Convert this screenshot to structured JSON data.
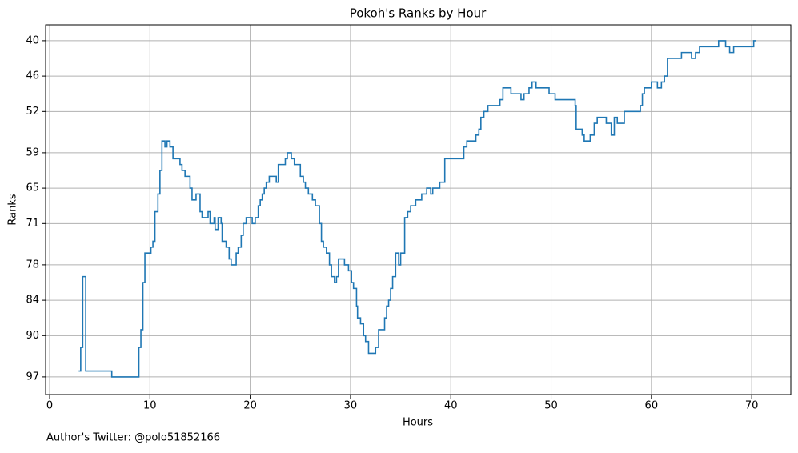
{
  "chart_data": {
    "type": "line",
    "drawstyle": "steps-post",
    "title": "Pokoh's Ranks by Hour",
    "x_label": "Hours",
    "y_label": "Ranks",
    "annotation": "Author's Twitter: @polo51852166",
    "x": [
      2.9,
      3.1,
      3.3,
      3.6,
      6.2,
      8.9,
      9.1,
      9.3,
      9.5,
      10.1,
      10.3,
      10.5,
      10.8,
      11.0,
      11.2,
      11.5,
      11.7,
      12.0,
      12.3,
      13.0,
      13.2,
      13.5,
      14.0,
      14.2,
      14.6,
      15.0,
      15.2,
      15.8,
      16.0,
      16.4,
      16.5,
      16.8,
      17.1,
      17.2,
      17.6,
      17.9,
      18.1,
      18.6,
      18.8,
      19.1,
      19.3,
      19.6,
      20.2,
      20.5,
      20.8,
      21.0,
      21.2,
      21.4,
      21.6,
      21.9,
      22.6,
      22.8,
      23.5,
      23.7,
      24.1,
      24.4,
      25.0,
      25.3,
      25.5,
      25.8,
      26.2,
      26.5,
      26.9,
      27.1,
      27.3,
      27.6,
      27.9,
      28.1,
      28.4,
      28.6,
      28.8,
      29.4,
      29.8,
      30.1,
      30.3,
      30.6,
      30.7,
      31.0,
      31.3,
      31.5,
      31.8,
      32.5,
      32.8,
      33.4,
      33.6,
      33.8,
      34.0,
      34.2,
      34.5,
      34.8,
      35.0,
      35.4,
      35.7,
      36.0,
      36.5,
      37.1,
      37.6,
      38.0,
      38.2,
      38.9,
      39.4,
      41.3,
      41.6,
      42.5,
      42.8,
      43.0,
      43.3,
      43.7,
      44.9,
      45.2,
      46.0,
      47.0,
      47.3,
      47.8,
      48.1,
      48.5,
      49.8,
      50.4,
      52.4,
      52.5,
      53.1,
      53.3,
      53.9,
      54.3,
      54.6,
      55.5,
      56.0,
      56.3,
      56.6,
      57.3,
      58.9,
      59.1,
      59.3,
      60.0,
      60.6,
      61.0,
      61.3,
      61.6,
      63.0,
      64.0,
      64.4,
      64.8,
      66.7,
      67.4,
      67.8,
      68.2,
      70.2,
      70.4
    ],
    "series": [
      {
        "name": "Ranks",
        "color": "#1f77b4",
        "values": [
          96,
          92,
          80,
          96,
          97,
          92,
          89,
          81,
          76,
          75,
          74,
          69,
          66,
          62,
          57,
          58,
          57,
          58,
          60,
          61,
          62,
          63,
          65,
          67,
          66,
          69,
          70,
          69,
          71,
          70,
          72,
          70,
          71,
          74,
          75,
          77,
          78,
          76,
          75,
          73,
          71,
          70,
          71,
          70,
          68,
          67,
          66,
          65,
          64,
          63,
          64,
          61,
          60,
          59,
          60,
          61,
          63,
          64,
          65,
          66,
          67,
          68,
          71,
          74,
          75,
          76,
          78,
          80,
          81,
          80,
          77,
          78,
          79,
          81,
          82,
          85,
          87,
          88,
          90,
          91,
          93,
          92,
          89,
          87,
          85,
          84,
          82,
          80,
          76,
          78,
          76,
          70,
          69,
          68,
          67,
          66,
          65,
          66,
          65,
          64,
          60,
          58,
          57,
          56,
          55,
          53,
          52,
          51,
          50,
          48,
          49,
          50,
          49,
          48,
          47,
          48,
          49,
          50,
          51,
          55,
          56,
          57,
          56,
          54,
          53,
          54,
          56,
          53,
          54,
          52,
          51,
          49,
          48,
          47,
          48,
          47,
          46,
          43,
          42,
          43,
          42,
          41,
          40,
          41,
          42,
          41,
          40,
          40
        ]
      }
    ],
    "xlim": [
      -0.4,
      73.9
    ],
    "xticks": [
      0,
      10,
      20,
      30,
      40,
      50,
      60,
      70
    ],
    "ylim": [
      100,
      37.3
    ],
    "yticks": [
      40,
      46,
      52,
      59,
      65,
      71,
      78,
      84,
      90,
      97
    ],
    "grid": true
  }
}
